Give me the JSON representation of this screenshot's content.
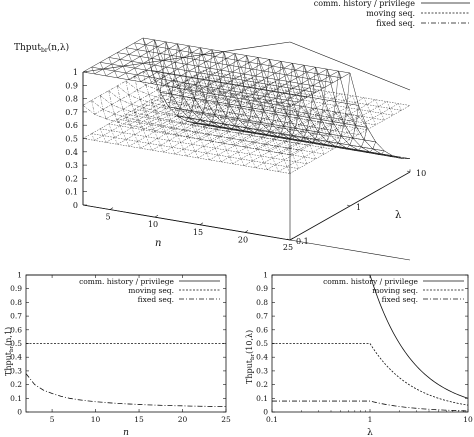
{
  "legend": {
    "comm": "comm. history / privilege",
    "moving": "moving seq.",
    "fixed": "fixed seq."
  },
  "chart_data": [
    {
      "type": "surface",
      "zlabel_main": "Thput",
      "zlabel_sub": "br",
      "zlabel_args": "(n,λ)",
      "xlabel": "n",
      "ylabel": "λ",
      "x_ticks": [
        "5",
        "10",
        "15",
        "20",
        "25"
      ],
      "y_ticks": [
        "0.1",
        "1",
        "10"
      ],
      "z_ticks": [
        "0",
        "0.1",
        "0.2",
        "0.3",
        "0.4",
        "0.5",
        "0.6",
        "0.7",
        "0.8",
        "0.9",
        "1"
      ],
      "xlim": [
        2,
        25
      ],
      "ylim": [
        0.1,
        10
      ],
      "ylog": true,
      "zlim": [
        0,
        1
      ],
      "series": [
        {
          "name": "comm. history / privilege",
          "model": "z = min(1, 1/λ)"
        },
        {
          "name": "moving seq.",
          "model": "z = 0.5"
        },
        {
          "name": "fixed seq.",
          "model": "z = min(1/λ, 1 - (1 - 1/n)^n)"
        }
      ]
    },
    {
      "type": "line",
      "ylabel_main": "Thput",
      "ylabel_sub": "br",
      "ylabel_args": "(n,1)",
      "xlabel": "n",
      "x_ticks": [
        "5",
        "10",
        "15",
        "20",
        "25"
      ],
      "y_ticks": [
        "0",
        "0.1",
        "0.2",
        "0.3",
        "0.4",
        "0.5",
        "0.6",
        "0.7",
        "0.8",
        "0.9",
        "1"
      ],
      "xlim": [
        2,
        25
      ],
      "ylim": [
        0,
        1
      ],
      "x": [
        2,
        3,
        4,
        5,
        6,
        7,
        8,
        9,
        10,
        11,
        12,
        13,
        14,
        15,
        16,
        17,
        18,
        19,
        20,
        21,
        22,
        23,
        24,
        25
      ],
      "series": [
        {
          "name": "comm. history / privilege",
          "style": "solid",
          "values": [
            1,
            1,
            1,
            1,
            1,
            1,
            1,
            1,
            1,
            1,
            1,
            1,
            1,
            1,
            1,
            1,
            1,
            1,
            1,
            1,
            1,
            1,
            1,
            1
          ]
        },
        {
          "name": "moving seq.",
          "style": "dash",
          "values": [
            0.5,
            0.5,
            0.5,
            0.5,
            0.5,
            0.5,
            0.5,
            0.5,
            0.5,
            0.5,
            0.5,
            0.5,
            0.5,
            0.5,
            0.5,
            0.5,
            0.5,
            0.5,
            0.5,
            0.5,
            0.5,
            0.5,
            0.5,
            0.5
          ]
        },
        {
          "name": "fixed seq.",
          "style": "dashdot",
          "values": [
            0.28,
            0.2,
            0.16,
            0.135,
            0.115,
            0.1,
            0.09,
            0.082,
            0.075,
            0.07,
            0.065,
            0.061,
            0.058,
            0.055,
            0.052,
            0.05,
            0.048,
            0.046,
            0.045,
            0.043,
            0.042,
            0.041,
            0.04,
            0.039
          ]
        }
      ],
      "legend_position": "top-right"
    },
    {
      "type": "line",
      "ylabel_main": "Thput",
      "ylabel_sub": "br",
      "ylabel_args": "(10,λ)",
      "xlabel": "λ",
      "x_ticks": [
        "0.1",
        "1",
        "10"
      ],
      "y_ticks": [
        "0",
        "0.1",
        "0.2",
        "0.3",
        "0.4",
        "0.5",
        "0.6",
        "0.7",
        "0.8",
        "0.9",
        "1"
      ],
      "xlim": [
        0.1,
        10
      ],
      "xlog": true,
      "ylim": [
        0,
        1
      ],
      "x": [
        0.1,
        0.2,
        0.5,
        1,
        1.5,
        2,
        3,
        4,
        5,
        6,
        8,
        10
      ],
      "series": [
        {
          "name": "comm. history / privilege",
          "style": "solid",
          "values": [
            1,
            1,
            1,
            1,
            0.667,
            0.5,
            0.333,
            0.25,
            0.2,
            0.167,
            0.125,
            0.1
          ]
        },
        {
          "name": "moving seq.",
          "style": "dash",
          "values": [
            0.5,
            0.5,
            0.5,
            0.5,
            0.333,
            0.25,
            0.167,
            0.125,
            0.1,
            0.083,
            0.063,
            0.05
          ]
        },
        {
          "name": "fixed seq.",
          "style": "dashdot",
          "values": [
            0.08,
            0.08,
            0.08,
            0.08,
            0.06,
            0.048,
            0.034,
            0.026,
            0.021,
            0.017,
            0.013,
            0.01
          ]
        }
      ],
      "legend_position": "top-right"
    }
  ]
}
